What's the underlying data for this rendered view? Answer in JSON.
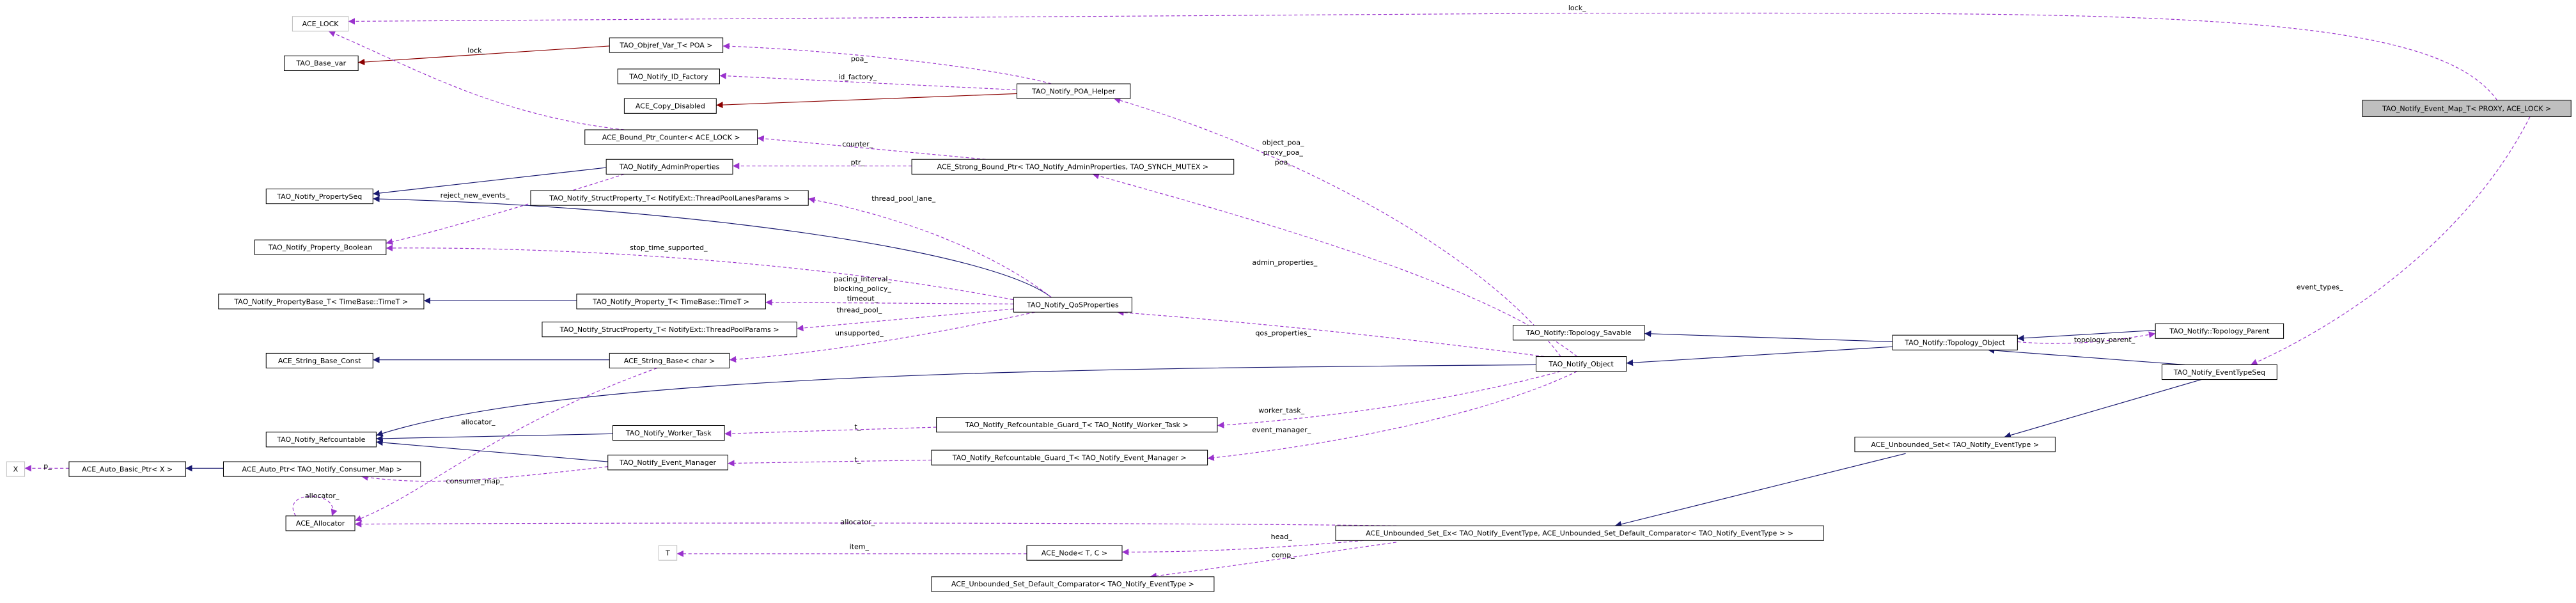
{
  "nodes": [
    "ACE_LOCK",
    "TAO_Objref_Var_T< POA >",
    "TAO_Base_var",
    "TAO_Notify_ID_Factory",
    "TAO_Notify_POA_Helper",
    "ACE_Copy_Disabled",
    "TAO_Notify_Event_Map_T< PROXY, ACE_LOCK >",
    "ACE_Bound_Ptr_Counter< ACE_LOCK >",
    "TAO_Notify_AdminProperties",
    "ACE_Strong_Bound_Ptr< TAO_Notify_AdminProperties, TAO_SYNCH_MUTEX >",
    "TAO_Notify_PropertySeq",
    "TAO_Notify_StructProperty_T< NotifyExt::ThreadPoolLanesParams >",
    "TAO_Notify_Property_Boolean",
    "TAO_Notify_PropertyBase_T< TimeBase::TimeT >",
    "TAO_Notify_Property_T< TimeBase::TimeT >",
    "TAO_Notify_QoSProperties",
    "TAO_Notify_StructProperty_T< NotifyExt::ThreadPoolParams >",
    "TAO_Notify::Topology_Savable",
    "TAO_Notify::Topology_Parent",
    "TAO_Notify::Topology_Object",
    "ACE_String_Base_Const",
    "ACE_String_Base< char >",
    "TAO_Notify_Object",
    "TAO_Notify_EventTypeSeq",
    "TAO_Notify_Refcountable_Guard_T< TAO_Notify_Worker_Task >",
    "TAO_Notify_Refcountable",
    "TAO_Notify_Worker_Task",
    "ACE_Unbounded_Set< TAO_Notify_EventType >",
    "X",
    "ACE_Auto_Basic_Ptr< X >",
    "ACE_Auto_Ptr< TAO_Notify_Consumer_Map >",
    "TAO_Notify_Event_Manager",
    "TAO_Notify_Refcountable_Guard_T< TAO_Notify_Event_Manager >",
    "ACE_Allocator",
    "ACE_Unbounded_Set_Ex< TAO_Notify_EventType, ACE_Unbounded_Set_Default_Comparator< TAO_Notify_EventType > >",
    "T",
    "ACE_Node< T, C >",
    "ACE_Unbounded_Set_Default_Comparator< TAO_Notify_EventType >"
  ],
  "edge_labels": [
    "lock_",
    "lock_",
    "poa_",
    "id_factory_",
    "object_poa_",
    "proxy_poa_",
    "poa_",
    "counter_",
    "ptr_",
    "reject_new_events_",
    "thread_pool_lane_",
    "admin_properties_",
    "stop_time_supported_",
    "pacing_interval_",
    "blocking_policy_",
    "timeout_",
    "thread_pool_",
    "event_types_",
    "topology_parent_",
    "unsupported_",
    "qos_properties_",
    "allocator_",
    "worker_task_",
    "t_",
    "event_manager_",
    "t_",
    "consumer_map_",
    "p_",
    "allocator_",
    "allocator_",
    "head_",
    "item_",
    "comp_"
  ]
}
